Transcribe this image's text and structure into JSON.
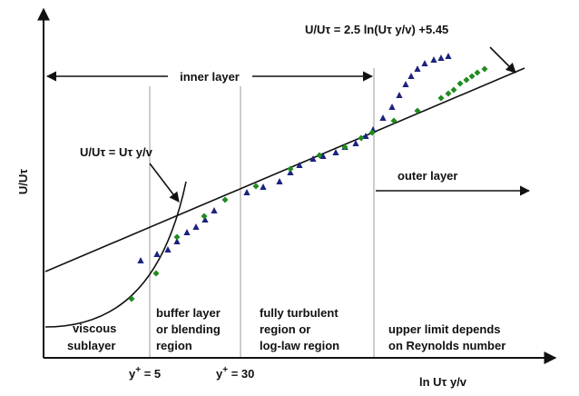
{
  "labels": {
    "y_axis": "U/Uτ",
    "x_axis": "ln Uτ y/v",
    "log_law": "U/Uτ = 2.5 ln(Uτ y/v) +5.45",
    "linear_law": "U/Uτ = Uτ y/v",
    "inner_layer": "inner layer",
    "outer_layer": "outer layer",
    "yplus5": "5",
    "yplus30": "30",
    "yplus_prefix": "y",
    "yplus_sup": "+",
    "yplus_eq": " = "
  },
  "regions": {
    "viscous": [
      "viscous",
      "sublayer"
    ],
    "buffer": [
      "buffer layer",
      "or blending",
      "region"
    ],
    "log": [
      "fully turbulent",
      "region or",
      "log-law region"
    ],
    "outer": [
      "upper limit depends",
      "on Reynolds number"
    ]
  },
  "colors": {
    "axis": "#111111",
    "divider": "#9a9a9a",
    "triangle_series": "#1a237e",
    "diamond_series": "#1e8c1e"
  }
}
